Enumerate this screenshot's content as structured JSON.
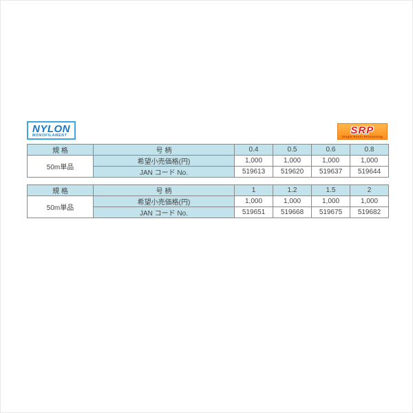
{
  "badges": {
    "nylon": {
      "line1": "NYLON",
      "line2": "MONOFILAMENT"
    },
    "srp": {
      "line1": "SRP",
      "line2": "Single Resin Processing"
    }
  },
  "table1": {
    "header": {
      "spec": "規 格",
      "label": "号 柄",
      "c1": "0.4",
      "c2": "0.5",
      "c3": "0.6",
      "c4": "0.8"
    },
    "specValue": "50m単品",
    "row1": {
      "label": "希望小売価格(円)",
      "c1": "1,000",
      "c2": "1,000",
      "c3": "1,000",
      "c4": "1,000"
    },
    "row2": {
      "label": "JAN コード No.",
      "c1": "519613",
      "c2": "519620",
      "c3": "519637",
      "c4": "519644"
    }
  },
  "table2": {
    "header": {
      "spec": "規 格",
      "label": "号 柄",
      "c1": "1",
      "c2": "1.2",
      "c3": "1.5",
      "c4": "2"
    },
    "specValue": "50m単品",
    "row1": {
      "label": "希望小売価格(円)",
      "c1": "1,000",
      "c2": "1,000",
      "c3": "1,000",
      "c4": "1,000"
    },
    "row2": {
      "label": "JAN コード No.",
      "c1": "519651",
      "c2": "519668",
      "c3": "519675",
      "c4": "519682"
    }
  }
}
